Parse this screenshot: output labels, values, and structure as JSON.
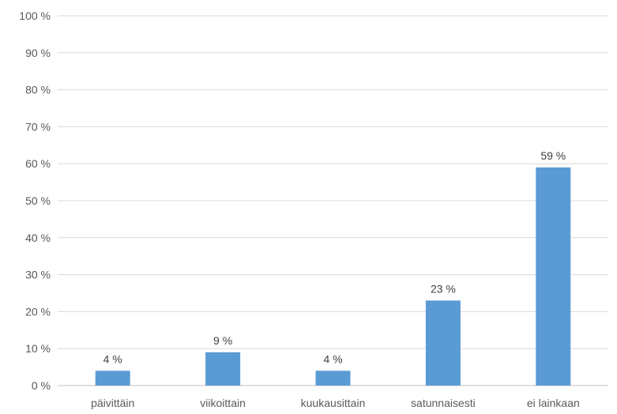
{
  "chart_data": {
    "type": "bar",
    "title": "",
    "xlabel": "",
    "ylabel": "",
    "categories": [
      "päivittäin",
      "viikoittain",
      "kuukausittain",
      "satunnaisesti",
      "ei lainkaan"
    ],
    "values": [
      4,
      9,
      4,
      23,
      59
    ],
    "data_labels": [
      "4 %",
      "9 %",
      "4 %",
      "23 %",
      "59 %"
    ],
    "ylim": [
      0,
      100
    ],
    "y_ticks": [
      0,
      10,
      20,
      30,
      40,
      50,
      60,
      70,
      80,
      90,
      100
    ],
    "y_tick_labels": [
      "0 %",
      "10 %",
      "20 %",
      "30 %",
      "40 %",
      "50 %",
      "60 %",
      "70 %",
      "80 %",
      "90 %",
      "100 %"
    ],
    "grid": true,
    "legend": "none",
    "colors": {
      "bar": "#5b9bd5",
      "grid": "#d9d9d9",
      "axis": "#bfbfbf",
      "text": "#595959"
    }
  }
}
